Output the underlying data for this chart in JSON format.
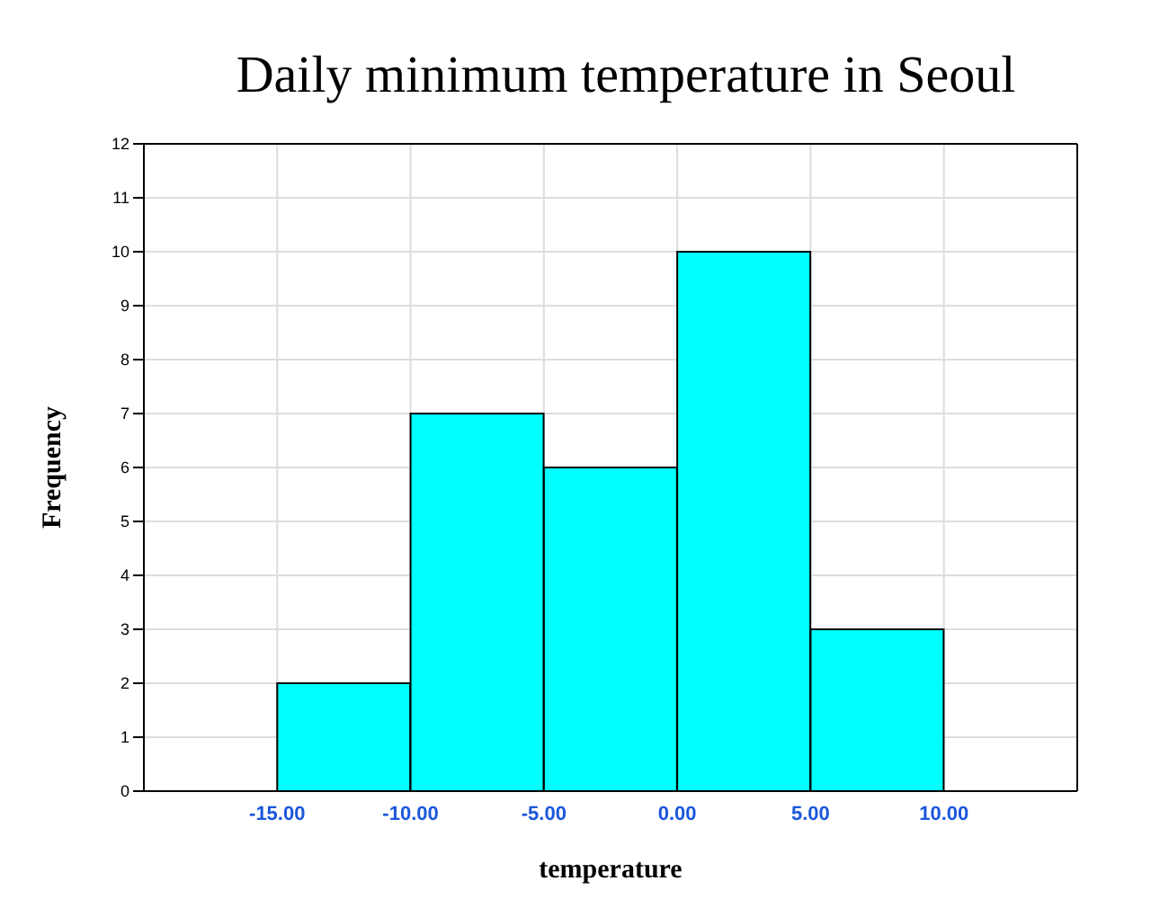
{
  "chart_data": {
    "type": "histogram",
    "title": "Daily minimum temperature in Seoul",
    "xlabel": "temperature",
    "ylabel": "Frequency",
    "bins": [
      -15,
      -10,
      -5,
      0,
      5,
      10
    ],
    "values": [
      2,
      7,
      6,
      10,
      3
    ],
    "color": "#00ffff",
    "xlim": [
      -20,
      15
    ],
    "xticks": [
      {
        "value": -15,
        "label": "-15.00"
      },
      {
        "value": -10,
        "label": "-10.00"
      },
      {
        "value": -5,
        "label": "-5.00"
      },
      {
        "value": 0,
        "label": "0.00"
      },
      {
        "value": 5,
        "label": "5.00"
      },
      {
        "value": 10,
        "label": "10.00"
      }
    ],
    "ylim": [
      0,
      12
    ],
    "yticks": [
      0,
      1,
      2,
      3,
      4,
      5,
      6,
      7,
      8,
      9,
      10,
      11,
      12
    ],
    "grid": true
  }
}
